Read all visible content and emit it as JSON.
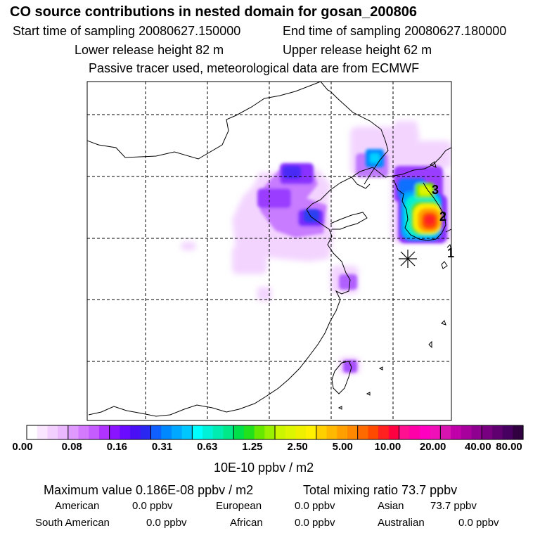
{
  "header": {
    "title": "CO  source contributions in nested domain for gosan_200806",
    "start": "Start time of sampling 20080627.150000",
    "end": "End time of sampling 20080627.180000",
    "lower": "Lower release height   82 m",
    "upper": "Upper release height   62 m",
    "tracer": "Passive tracer used, meteorological data are from ECMWF"
  },
  "chart_data": {
    "type": "heatmap",
    "title": "CO  source contributions in nested domain for gosan_200806",
    "colorbar": {
      "ticks": [
        "0.00",
        "0.08",
        "0.16",
        "0.31",
        "0.63",
        "1.25",
        "2.50",
        "5.00",
        "10.00",
        "20.00",
        "40.00",
        "80.00"
      ],
      "unit": "10E-10 ppbv / m2",
      "colors": [
        "#ffffff",
        "#fae6ff",
        "#f3cfff",
        "#ebb8ff",
        "#df99ff",
        "#d37aff",
        "#c45cff",
        "#b033ff",
        "#8a14ff",
        "#6a0aff",
        "#4a10f5",
        "#2a28f0",
        "#1060ff",
        "#0088ff",
        "#00a8ff",
        "#00c8ff",
        "#00ffff",
        "#00f0d8",
        "#00ecb0",
        "#00e888",
        "#00e04a",
        "#22e01c",
        "#66e800",
        "#99f000",
        "#ccf500",
        "#ddf500",
        "#eef000",
        "#ffef00",
        "#ffd000",
        "#ffb800",
        "#ffa000",
        "#ff8800",
        "#ff6a00",
        "#ff4a00",
        "#ff2020",
        "#ff0040",
        "#ff1090",
        "#ff00a8",
        "#ff00c0",
        "#f010b8",
        "#d814b0",
        "#c000a8",
        "#a8009c",
        "#900090",
        "#780080",
        "#600070",
        "#480060",
        "#300040"
      ],
      "boundaries": [
        4,
        8,
        12,
        16,
        20,
        24,
        28,
        32,
        36,
        40,
        44
      ]
    },
    "grid": true,
    "markers": [
      {
        "label": "1",
        "type": "receptor-number"
      },
      {
        "label": "2",
        "type": "receptor-number"
      },
      {
        "label": "3",
        "type": "receptor-number"
      },
      {
        "label": "",
        "type": "release-site-star"
      }
    ]
  },
  "summary": {
    "max": "Maximum value  0.186E-08 ppbv / m2",
    "total": "Total mixing ratio       73.7 ppbv",
    "regions": [
      {
        "name": "American",
        "value": "0.0 ppbv"
      },
      {
        "name": "European",
        "value": "0.0 ppbv"
      },
      {
        "name": "Asian",
        "value": "73.7 ppbv"
      },
      {
        "name": "South American",
        "value": "0.0 ppbv"
      },
      {
        "name": "African",
        "value": "0.0 ppbv"
      },
      {
        "name": "Australian",
        "value": "0.0 ppbv"
      }
    ]
  }
}
